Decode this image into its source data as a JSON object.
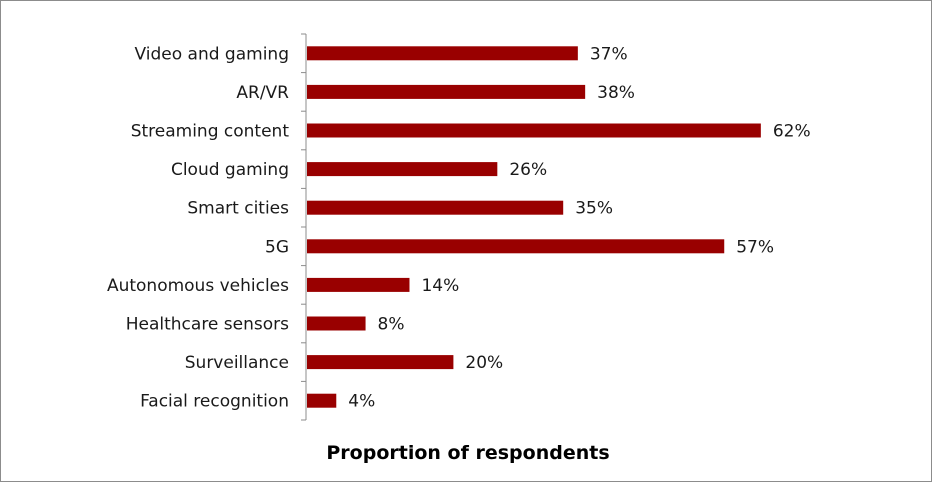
{
  "chart_data": {
    "type": "bar",
    "orientation": "horizontal",
    "categories": [
      "Video and gaming",
      "AR/VR",
      "Streaming content",
      "Cloud gaming",
      "Smart cities",
      "5G",
      "Autonomous vehicles",
      "Healthcare sensors",
      "Surveillance",
      "Facial recognition"
    ],
    "values": [
      37,
      38,
      62,
      26,
      35,
      57,
      14,
      8,
      20,
      4
    ],
    "value_labels": [
      "37%",
      "38%",
      "62%",
      "26%",
      "35%",
      "57%",
      "14%",
      "8%",
      "20%",
      "4%"
    ],
    "xlabel": "Proportion of respondents",
    "xlim": [
      0,
      85
    ],
    "grid": false,
    "legend": "none",
    "bar_color": "#990000"
  }
}
